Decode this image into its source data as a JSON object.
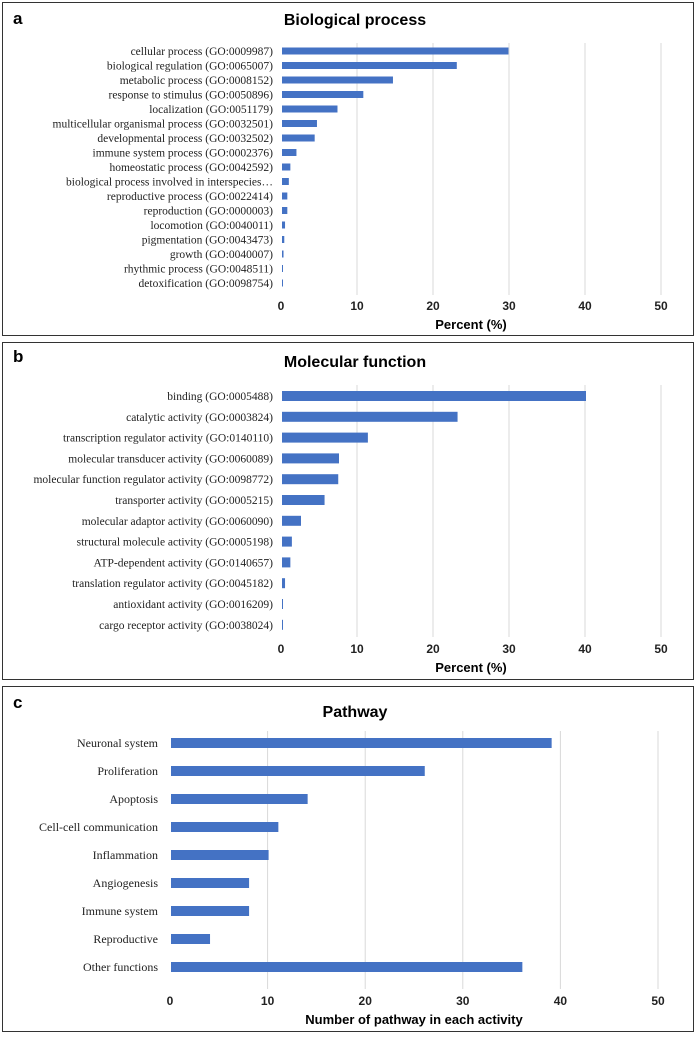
{
  "chart_data": [
    {
      "panel": "a",
      "type": "bar",
      "orientation": "horizontal",
      "title": "Biological process",
      "xlabel": "Percent (%)",
      "ylabel": "",
      "xlim": [
        0,
        50
      ],
      "ticks": [
        0,
        10,
        20,
        30,
        40,
        50
      ],
      "grid": true,
      "bar_color": "#4472c4",
      "categories": [
        "cellular process (GO:0009987)",
        "biological regulation (GO:0065007)",
        "metabolic process (GO:0008152)",
        "response to stimulus (GO:0050896)",
        "localization (GO:0051179)",
        "multicellular organismal process (GO:0032501)",
        "developmental process (GO:0032502)",
        "immune system process (GO:0002376)",
        "homeostatic process (GO:0042592)",
        "biological process involved in interspecies…",
        "reproductive process (GO:0022414)",
        "reproduction (GO:0000003)",
        "locomotion (GO:0040011)",
        "pigmentation (GO:0043473)",
        "growth (GO:0040007)",
        "rhythmic process (GO:0048511)",
        "detoxification (GO:0098754)"
      ],
      "values": [
        29.8,
        23.0,
        14.6,
        10.7,
        7.3,
        4.6,
        4.3,
        1.9,
        1.1,
        0.9,
        0.7,
        0.7,
        0.4,
        0.3,
        0.2,
        0.1,
        0.05
      ]
    },
    {
      "panel": "b",
      "type": "bar",
      "orientation": "horizontal",
      "title": "Molecular function",
      "xlabel": "Percent (%)",
      "ylabel": "",
      "xlim": [
        0,
        50
      ],
      "ticks": [
        0,
        10,
        20,
        30,
        40,
        50
      ],
      "grid": true,
      "bar_color": "#4472c4",
      "categories": [
        "binding (GO:0005488)",
        "catalytic activity (GO:0003824)",
        "transcription regulator activity (GO:0140110)",
        "molecular transducer activity (GO:0060089)",
        "molecular function regulator activity (GO:0098772)",
        "transporter activity (GO:0005215)",
        "molecular adaptor activity (GO:0060090)",
        "structural molecule activity (GO:0005198)",
        "ATP-dependent activity (GO:0140657)",
        "translation regulator activity (GO:0045182)",
        "antioxidant activity (GO:0016209)",
        "cargo receptor activity (GO:0038024)"
      ],
      "values": [
        40.0,
        23.1,
        11.3,
        7.5,
        7.4,
        5.6,
        2.5,
        1.3,
        1.1,
        0.4,
        0.1,
        0.1
      ]
    },
    {
      "panel": "c",
      "type": "bar",
      "orientation": "horizontal",
      "title": "Pathway",
      "xlabel": "Number of pathway in each activity",
      "ylabel": "",
      "xlim": [
        0,
        50
      ],
      "ticks": [
        0,
        10,
        20,
        30,
        40,
        50
      ],
      "grid": true,
      "bar_color": "#4472c4",
      "categories": [
        "Neuronal system",
        "Proliferation",
        "Apoptosis",
        "Cell-cell communication",
        "Inflammation",
        "Angiogenesis",
        "Immune system",
        "Reproductive",
        "Other functions"
      ],
      "values": [
        39,
        26,
        14,
        11,
        10,
        8,
        8,
        4,
        36
      ]
    }
  ]
}
